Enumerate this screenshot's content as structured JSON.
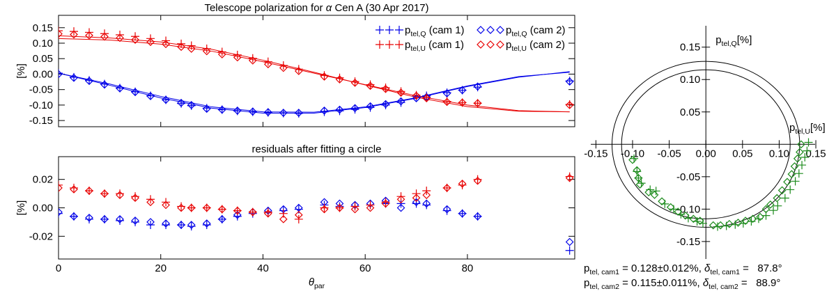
{
  "chart_data": [
    {
      "type": "scatter",
      "title": [
        {
          "text": "Telescope polarization for "
        },
        {
          "italic": "α"
        },
        {
          "text": " Cen A (30 Apr 2017)"
        }
      ],
      "ylabel": "[%]",
      "legend": "upper right",
      "xlim": [
        0,
        101
      ],
      "xticks": [
        0,
        20,
        40,
        60,
        80
      ],
      "xtick_labels": false,
      "ylim": [
        -0.17,
        0.19
      ],
      "yticks": [
        0.15,
        {
          "value": 0.1,
          "label": "0.10"
        },
        0.05,
        {
          "value": 0,
          "label": "0.00"
        },
        -0.05,
        {
          "value": -0.1,
          "label": "-0.10"
        },
        -0.15
      ],
      "x": [
        0,
        3,
        6,
        9,
        12,
        15,
        18,
        21,
        24,
        26,
        29,
        32,
        35,
        38,
        41,
        44,
        47,
        52,
        55,
        58,
        61,
        64,
        67,
        70,
        72,
        76,
        79,
        82,
        100
      ],
      "series": [
        {
          "name": {
            "base": "p",
            "sub": "tel,Q",
            "rest": " (cam 1)"
          },
          "color": "#0000e8",
          "marker": "plus",
          "values": [
            0.003,
            -0.01,
            -0.02,
            -0.032,
            -0.045,
            -0.057,
            -0.07,
            -0.083,
            -0.095,
            -0.102,
            -0.11,
            -0.115,
            -0.119,
            -0.122,
            -0.124,
            -0.126,
            -0.127,
            -0.122,
            -0.119,
            -0.114,
            -0.108,
            -0.1,
            -0.092,
            -0.072,
            -0.07,
            -0.06,
            -0.052,
            -0.042,
            -0.022
          ]
        },
        {
          "name": {
            "base": "p",
            "sub": "tel,Q",
            "rest": " (cam 2)"
          },
          "color": "#0000e8",
          "marker": "diamond",
          "values": [
            0.0,
            -0.012,
            -0.022,
            -0.034,
            -0.046,
            -0.058,
            -0.071,
            -0.083,
            -0.093,
            -0.1,
            -0.112,
            -0.115,
            -0.118,
            -0.121,
            -0.123,
            -0.125,
            -0.125,
            -0.118,
            -0.115,
            -0.11,
            -0.104,
            -0.097,
            -0.088,
            -0.078,
            -0.074,
            -0.062,
            -0.052,
            -0.04,
            -0.024
          ]
        },
        {
          "name": {
            "base": "p",
            "sub": "tel,U",
            "rest": " (cam 1)"
          },
          "color": "#e80000",
          "marker": "plus",
          "values": [
            0.14,
            0.138,
            0.135,
            0.131,
            0.127,
            0.122,
            0.115,
            0.108,
            0.098,
            0.092,
            0.082,
            0.072,
            0.062,
            0.051,
            0.04,
            0.028,
            0.016,
            -0.004,
            -0.012,
            -0.024,
            -0.034,
            -0.044,
            -0.056,
            -0.068,
            -0.076,
            -0.088,
            -0.092,
            -0.094,
            -0.098
          ]
        },
        {
          "name": {
            "base": "p",
            "sub": "tel,U",
            "rest": " (cam 2)"
          },
          "color": "#e80000",
          "marker": "diamond",
          "values": [
            0.13,
            0.128,
            0.125,
            0.121,
            0.117,
            0.111,
            0.104,
            0.097,
            0.088,
            0.082,
            0.074,
            0.064,
            0.054,
            0.044,
            0.032,
            0.02,
            0.01,
            -0.008,
            -0.017,
            -0.028,
            -0.038,
            -0.048,
            -0.06,
            -0.07,
            -0.078,
            -0.09,
            -0.092,
            -0.094,
            -0.1
          ]
        }
      ],
      "fit_x": [
        0,
        10,
        20,
        30,
        40,
        50,
        60,
        70,
        80,
        90,
        100
      ],
      "fits": [
        {
          "color": "#0000e8",
          "values": [
            0.003,
            -0.036,
            -0.077,
            -0.11,
            -0.126,
            -0.126,
            -0.108,
            -0.078,
            -0.04,
            -0.01,
            0.008
          ]
        },
        {
          "color": "#0000e8",
          "values": [
            0.003,
            -0.032,
            -0.072,
            -0.106,
            -0.122,
            -0.123,
            -0.106,
            -0.076,
            -0.038,
            -0.008,
            0.006
          ]
        },
        {
          "color": "#e80000",
          "values": [
            0.124,
            0.117,
            0.104,
            0.08,
            0.045,
            0.006,
            -0.035,
            -0.075,
            -0.105,
            -0.12,
            -0.122
          ]
        },
        {
          "color": "#e80000",
          "values": [
            0.115,
            0.11,
            0.097,
            0.074,
            0.04,
            0.003,
            -0.034,
            -0.07,
            -0.1,
            -0.118,
            -0.122
          ]
        }
      ]
    },
    {
      "type": "scatter",
      "title": [
        {
          "text": "residuals after fitting a circle"
        }
      ],
      "ylabel": "[%]",
      "xlabel": [
        {
          "italic": "θ"
        },
        {
          "sub": "par"
        }
      ],
      "xlim": [
        0,
        101
      ],
      "xticks": [
        0,
        20,
        40,
        60,
        80
      ],
      "xtick_labels": true,
      "ylim": [
        -0.036,
        0.036
      ],
      "yticks": [
        0.02,
        {
          "value": 0,
          "label": "0.00"
        },
        -0.02
      ],
      "x": [
        0,
        3,
        6,
        9,
        12,
        15,
        18,
        21,
        24,
        26,
        29,
        32,
        35,
        38,
        41,
        44,
        47,
        52,
        55,
        58,
        61,
        64,
        67,
        70,
        72,
        76,
        79,
        82,
        100
      ],
      "series": [
        {
          "color": "#0000e8",
          "marker": "plus",
          "values": [
            -0.004,
            -0.006,
            -0.008,
            -0.008,
            -0.009,
            -0.01,
            -0.012,
            -0.012,
            -0.012,
            -0.013,
            -0.012,
            -0.008,
            -0.006,
            -0.004,
            -0.003,
            -0.002,
            -0.001,
            0.002,
            0.001,
            0.001,
            0.002,
            0.003,
            0.003,
            0.003,
            0.002,
            -0.002,
            -0.004,
            -0.006,
            -0.03
          ]
        },
        {
          "color": "#0000e8",
          "marker": "diamond",
          "values": [
            -0.003,
            -0.006,
            -0.007,
            -0.008,
            -0.008,
            -0.009,
            -0.01,
            -0.011,
            -0.012,
            -0.012,
            -0.011,
            -0.008,
            -0.005,
            -0.003,
            -0.002,
            -0.001,
            0.0,
            0.004,
            0.003,
            0.002,
            0.003,
            0.005,
            0.0,
            0.004,
            0.003,
            -0.001,
            -0.004,
            -0.006,
            -0.024
          ]
        },
        {
          "color": "#e80000",
          "marker": "plus",
          "values": [
            0.016,
            0.014,
            0.012,
            0.01,
            0.01,
            0.008,
            0.006,
            0.004,
            0.001,
            0.0,
            0.0,
            -0.001,
            -0.002,
            -0.003,
            -0.003,
            -0.004,
            -0.008,
            0.0,
            0.0,
            0.001,
            0.002,
            0.004,
            0.008,
            0.01,
            0.012,
            0.014,
            0.016,
            0.02,
            0.022
          ]
        },
        {
          "color": "#e80000",
          "marker": "diamond",
          "values": [
            0.014,
            0.013,
            0.012,
            0.01,
            0.009,
            0.007,
            0.004,
            0.002,
            0.0,
            0.0,
            0.0,
            -0.001,
            -0.002,
            -0.003,
            -0.004,
            -0.008,
            -0.005,
            -0.001,
            0.0,
            -0.001,
            0.0,
            0.003,
            0.006,
            0.007,
            0.009,
            0.014,
            0.017,
            0.019,
            0.021
          ]
        }
      ]
    },
    {
      "type": "polar-scatter",
      "xlabel": {
        "base": "p",
        "sub": "tel,U",
        "rest": "[%]"
      },
      "ylabel": {
        "base": "p",
        "sub": "tel,Q",
        "rest": "[%]"
      },
      "xlim": [
        -0.157,
        0.149
      ],
      "xticks": [
        -0.15,
        {
          "value": -0.1,
          "label": "-0.10"
        },
        -0.05,
        {
          "value": 0,
          "label": "0.00"
        },
        0.05,
        {
          "value": 0.1,
          "label": "0.10"
        },
        0.15
      ],
      "ylim": [
        -0.177,
        0.183
      ],
      "yticks": [
        0.15,
        {
          "value": 0.1,
          "label": "0.10"
        },
        0.05,
        -0.05,
        {
          "value": -0.1,
          "label": "-0.10"
        },
        -0.15
      ],
      "color": "#1a8a1a",
      "circles": [
        {
          "radius": 0.128
        },
        {
          "radius": 0.115
        }
      ],
      "series": [
        {
          "marker": "plus",
          "x": [
            0.14,
            0.138,
            0.135,
            0.131,
            0.127,
            0.122,
            0.115,
            0.108,
            0.098,
            0.092,
            0.082,
            0.072,
            0.062,
            0.051,
            0.04,
            0.028,
            0.016,
            -0.004,
            -0.012,
            -0.024,
            -0.034,
            -0.044,
            -0.056,
            -0.068,
            -0.076,
            -0.088,
            -0.092,
            -0.094,
            -0.098
          ],
          "values": [
            0.003,
            -0.01,
            -0.02,
            -0.032,
            -0.045,
            -0.057,
            -0.07,
            -0.083,
            -0.095,
            -0.102,
            -0.11,
            -0.115,
            -0.119,
            -0.122,
            -0.124,
            -0.126,
            -0.127,
            -0.122,
            -0.119,
            -0.114,
            -0.108,
            -0.1,
            -0.092,
            -0.072,
            -0.07,
            -0.06,
            -0.052,
            -0.042,
            -0.022
          ]
        },
        {
          "marker": "diamond",
          "x": [
            0.13,
            0.128,
            0.125,
            0.121,
            0.117,
            0.111,
            0.104,
            0.097,
            0.088,
            0.082,
            0.074,
            0.064,
            0.054,
            0.044,
            0.032,
            0.02,
            0.01,
            -0.008,
            -0.017,
            -0.028,
            -0.038,
            -0.048,
            -0.06,
            -0.07,
            -0.078,
            -0.09,
            -0.092,
            -0.094,
            -0.1
          ],
          "values": [
            0.0,
            -0.012,
            -0.022,
            -0.034,
            -0.046,
            -0.058,
            -0.071,
            -0.083,
            -0.093,
            -0.1,
            -0.112,
            -0.115,
            -0.118,
            -0.121,
            -0.123,
            -0.125,
            -0.125,
            -0.118,
            -0.115,
            -0.11,
            -0.104,
            -0.097,
            -0.088,
            -0.078,
            -0.074,
            -0.062,
            -0.052,
            -0.04,
            -0.024
          ]
        }
      ],
      "annotations": [
        [
          {
            "text": "p"
          },
          {
            "sub": "tel, cam1"
          },
          {
            "text": " = 0.128±0.012%, "
          },
          {
            "italic": "δ"
          },
          {
            "sub": "tel, cam1"
          },
          {
            "text": " =   87.8°"
          }
        ],
        [
          {
            "text": "p"
          },
          {
            "sub": "tel, cam2"
          },
          {
            "text": " = 0.115±0.011%, "
          },
          {
            "italic": "δ"
          },
          {
            "sub": "tel, cam2"
          },
          {
            "text": " =   88.9°"
          }
        ]
      ]
    }
  ]
}
